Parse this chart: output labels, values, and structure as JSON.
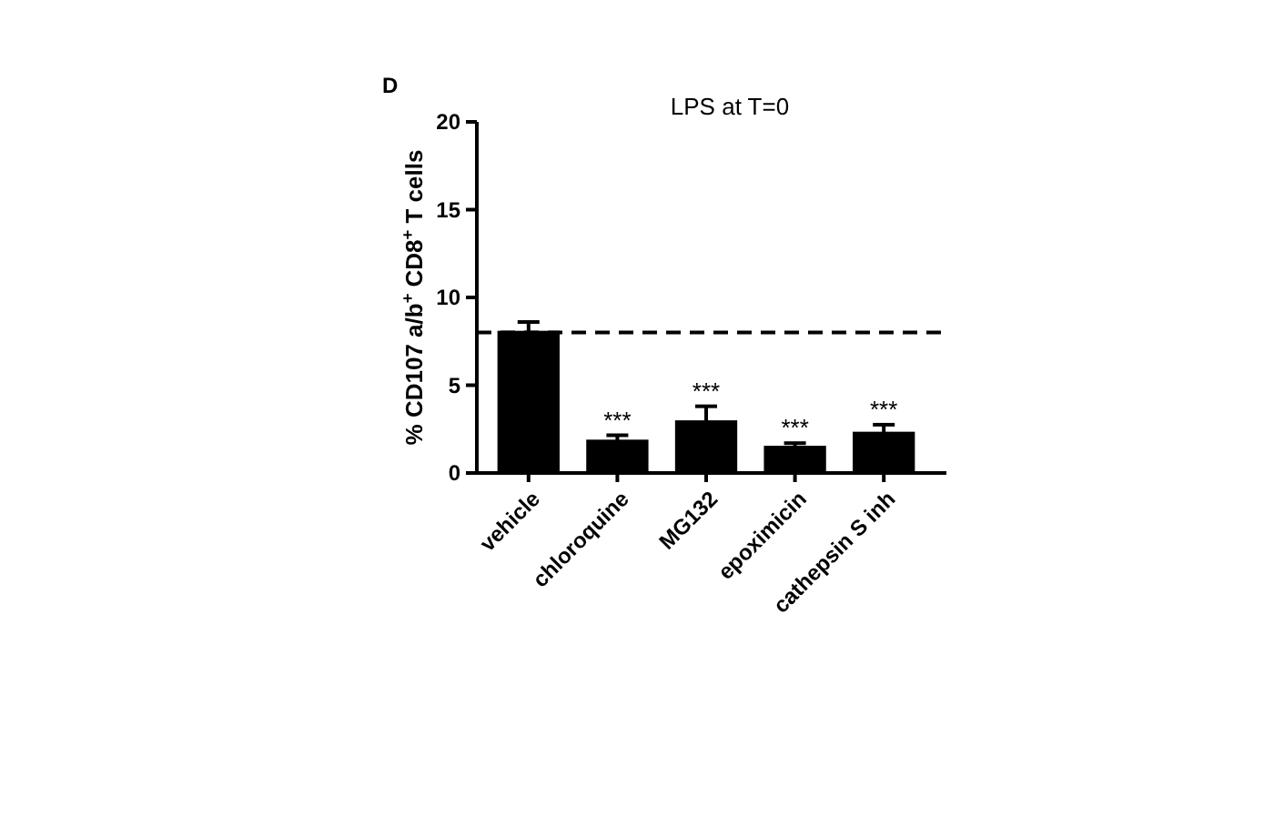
{
  "chart_data": {
    "type": "bar",
    "title": "LPS at T=0",
    "ylabel": "% CD107 a/b$^{+}$ CD8$^{+}$ T cells",
    "categories": [
      "vehicle",
      "chloroquine",
      "MG132",
      "epoximicin",
      "cathepsin S inh"
    ],
    "values": [
      8.1,
      1.9,
      3.0,
      1.55,
      2.35
    ],
    "errors": [
      0.5,
      0.25,
      0.8,
      0.15,
      0.4
    ],
    "color": "#000000",
    "ylim": [
      0,
      20
    ],
    "yticks": [
      0,
      5,
      10,
      15,
      20
    ],
    "grid": false,
    "ref_lines": [
      {
        "axis": "y",
        "value": 8.0,
        "line_style": "dashed",
        "color": "#000000"
      }
    ],
    "annotations": [
      "D",
      {
        "text": "***",
        "x": "chloroquine",
        "y": 2.15
      },
      {
        "text": "***",
        "x": "MG132",
        "y": 3.8
      },
      {
        "text": "***",
        "x": "epoximicin",
        "y": 1.7
      },
      {
        "text": "***",
        "x": "cathepsin S inh",
        "y": 2.75
      }
    ]
  }
}
